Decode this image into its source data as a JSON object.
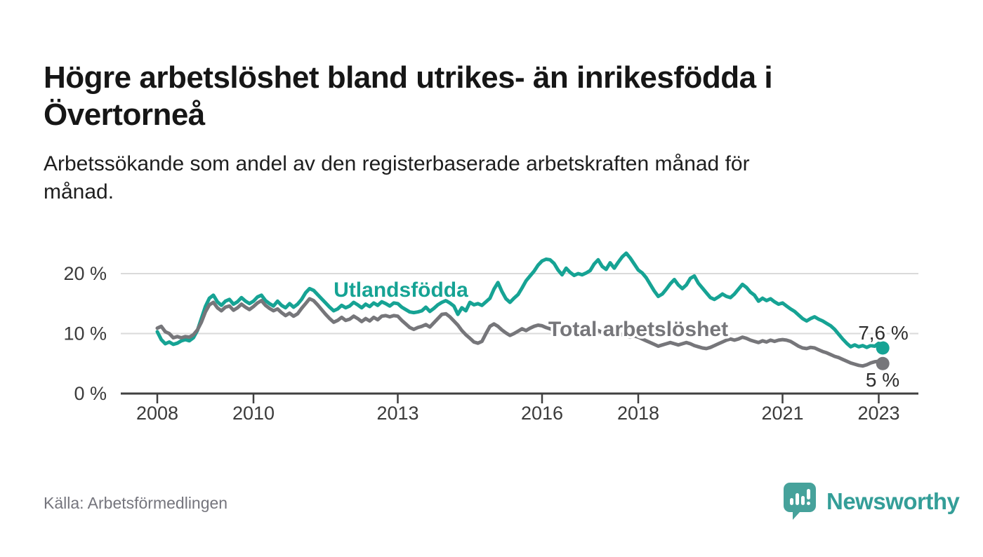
{
  "header": {
    "title_lines": [
      "Högre arbetslöshet bland utrikes- än inrikesfödda i",
      "Övertorneå"
    ],
    "subtitle_lines": [
      "Arbetssökande som andel av den registerbaserade arbetskraften månad för",
      "månad."
    ]
  },
  "footer": {
    "source": "Källa: Arbetsförmedlingen",
    "brand": "Newsworthy"
  },
  "colors": {
    "teal_line": "#16a394",
    "gray_line": "#76767a",
    "axis": "#404040",
    "grid": "#dadada",
    "value_label": "#2d2d2d",
    "tick_label": "#3b3b3b",
    "logo_teal": "#46a29b"
  },
  "chart_data": {
    "type": "line",
    "title": "",
    "xlabel": "",
    "ylabel": "",
    "x_unit": "month",
    "x_range": [
      "2008-01",
      "2023-02"
    ],
    "frequency": "monthly",
    "ylim": [
      0,
      25
    ],
    "grid": "horizontal",
    "legend_position": "inline-labels",
    "y_ticks": [
      {
        "value": 0,
        "label": "0 %"
      },
      {
        "value": 10,
        "label": "10 %"
      },
      {
        "value": 20,
        "label": "20 %"
      }
    ],
    "x_ticks": [
      {
        "value": 2008,
        "label": "2008"
      },
      {
        "value": 2010,
        "label": "2010"
      },
      {
        "value": 2013,
        "label": "2013"
      },
      {
        "value": 2016,
        "label": "2016"
      },
      {
        "value": 2018,
        "label": "2018"
      },
      {
        "value": 2021,
        "label": "2021"
      },
      {
        "value": 2023,
        "label": "2023"
      }
    ],
    "series": [
      {
        "name": "Utlandsfödda",
        "color": "#16a394",
        "end_label": "7,6 %",
        "end_value": 7.6,
        "values": [
          10.3,
          9.0,
          8.3,
          8.6,
          8.2,
          8.4,
          8.8,
          9.0,
          8.8,
          9.3,
          10.5,
          12.5,
          14.5,
          15.9,
          16.4,
          15.3,
          14.7,
          15.4,
          15.7,
          14.9,
          15.3,
          16.0,
          15.4,
          15.0,
          15.4,
          16.1,
          16.4,
          15.5,
          15.0,
          14.6,
          15.4,
          14.7,
          14.3,
          15.0,
          14.4,
          14.9,
          15.7,
          16.8,
          17.5,
          17.2,
          16.5,
          15.8,
          15.1,
          14.4,
          13.8,
          14.1,
          14.7,
          14.3,
          14.6,
          15.2,
          14.8,
          14.3,
          14.9,
          14.5,
          15.1,
          14.7,
          15.3,
          15.0,
          14.6,
          15.1,
          15.0,
          14.4,
          14.0,
          13.6,
          13.5,
          13.6,
          13.8,
          14.4,
          13.7,
          14.2,
          14.8,
          15.2,
          15.5,
          15.1,
          14.6,
          13.2,
          14.3,
          13.8,
          15.2,
          14.8,
          15.0,
          14.7,
          15.3,
          15.9,
          17.4,
          18.5,
          17.0,
          15.8,
          15.2,
          15.9,
          16.5,
          17.6,
          18.8,
          19.6,
          20.4,
          21.4,
          22.1,
          22.4,
          22.3,
          21.7,
          20.6,
          19.8,
          20.9,
          20.2,
          19.7,
          20.0,
          19.8,
          20.1,
          20.5,
          21.6,
          22.3,
          21.2,
          20.7,
          21.8,
          20.9,
          21.9,
          22.8,
          23.4,
          22.6,
          21.6,
          20.6,
          20.1,
          19.3,
          18.2,
          17.1,
          16.2,
          16.6,
          17.4,
          18.3,
          19.0,
          18.1,
          17.5,
          18.1,
          19.2,
          19.6,
          18.4,
          17.6,
          16.8,
          16.0,
          15.7,
          16.1,
          16.6,
          16.2,
          16.0,
          16.6,
          17.4,
          18.2,
          17.7,
          16.9,
          16.4,
          15.4,
          15.9,
          15.5,
          15.8,
          15.3,
          14.9,
          15.1,
          14.6,
          14.1,
          13.7,
          13.1,
          12.5,
          12.1,
          12.5,
          12.8,
          12.4,
          12.1,
          11.7,
          11.3,
          10.7,
          9.9,
          9.1,
          8.4,
          7.8,
          8.1,
          7.8,
          8.0,
          7.7,
          8.0,
          7.9,
          8.4,
          7.6
        ]
      },
      {
        "name": "Total arbetslöshet",
        "color": "#76767a",
        "end_label": "5 %",
        "end_value": 5.0,
        "values": [
          10.9,
          11.2,
          10.3,
          10.0,
          9.3,
          9.5,
          9.3,
          9.5,
          9.4,
          9.8,
          10.6,
          11.9,
          13.6,
          14.8,
          15.2,
          14.3,
          13.8,
          14.4,
          14.6,
          13.9,
          14.3,
          14.9,
          14.4,
          14.0,
          14.5,
          15.1,
          15.5,
          14.7,
          14.2,
          13.8,
          14.1,
          13.5,
          13.0,
          13.4,
          12.9,
          13.3,
          14.2,
          15.0,
          15.8,
          15.5,
          14.8,
          14.0,
          13.2,
          12.5,
          11.9,
          12.2,
          12.7,
          12.2,
          12.4,
          12.9,
          12.5,
          12.0,
          12.5,
          12.1,
          12.7,
          12.3,
          12.9,
          13.0,
          12.8,
          13.0,
          12.9,
          12.2,
          11.6,
          11.0,
          10.7,
          11.0,
          11.2,
          11.5,
          11.1,
          11.8,
          12.5,
          13.2,
          13.3,
          12.8,
          12.1,
          11.4,
          10.5,
          9.8,
          9.2,
          8.6,
          8.4,
          8.7,
          10.0,
          11.2,
          11.6,
          11.2,
          10.6,
          10.1,
          9.7,
          10.0,
          10.4,
          10.8,
          10.5,
          10.9,
          11.2,
          11.4,
          11.3,
          11.0,
          10.8,
          10.5,
          10.2,
          10.0,
          10.3,
          10.1,
          9.9,
          10.2,
          10.4,
          10.6,
          10.4,
          10.7,
          10.5,
          10.2,
          9.9,
          9.7,
          9.9,
          10.1,
          9.8,
          9.6,
          9.4,
          9.6,
          9.4,
          9.1,
          8.8,
          8.5,
          8.2,
          7.9,
          8.1,
          8.3,
          8.5,
          8.3,
          8.1,
          8.3,
          8.5,
          8.3,
          8.0,
          7.8,
          7.6,
          7.5,
          7.7,
          8.0,
          8.3,
          8.6,
          8.9,
          9.1,
          8.9,
          9.1,
          9.4,
          9.2,
          8.9,
          8.7,
          8.5,
          8.8,
          8.6,
          8.9,
          8.7,
          8.9,
          9.0,
          8.9,
          8.7,
          8.3,
          7.9,
          7.6,
          7.5,
          7.7,
          7.6,
          7.3,
          7.0,
          6.8,
          6.5,
          6.2,
          6.0,
          5.7,
          5.4,
          5.1,
          4.9,
          4.7,
          4.6,
          4.8,
          5.1,
          5.3,
          5.4,
          5.0
        ]
      }
    ]
  }
}
